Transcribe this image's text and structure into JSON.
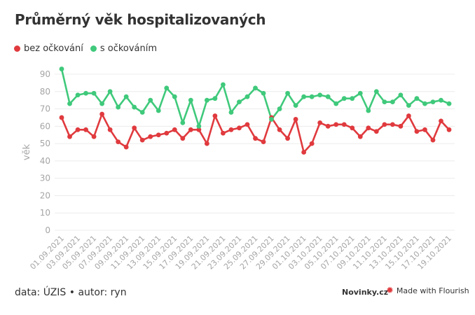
{
  "title": "Průměrný věk hospitalizovaných",
  "footer": {
    "source": "data: ÚZIS • autor: ryn",
    "brand": "Novinky.cz",
    "flourish": "Made with Flourish"
  },
  "colors": {
    "unvaccinated": "#e03a3e",
    "vaccinated": "#3fc97b",
    "grid": "#ececec",
    "axis_text": "#a5a5a5"
  },
  "chart_data": {
    "type": "line",
    "title": "Průměrný věk hospitalizovaných",
    "ylabel": "věk",
    "xlabel": "",
    "ylim": [
      0,
      90
    ],
    "yticks": [
      0,
      10,
      20,
      30,
      40,
      50,
      60,
      70,
      80,
      90
    ],
    "grid": true,
    "legend_position": "top-left",
    "x": [
      "01.09.2021",
      "02.09.2021",
      "03.09.2021",
      "04.09.2021",
      "05.09.2021",
      "06.09.2021",
      "07.09.2021",
      "08.09.2021",
      "09.09.2021",
      "10.09.2021",
      "11.09.2021",
      "12.09.2021",
      "13.09.2021",
      "14.09.2021",
      "15.09.2021",
      "16.09.2021",
      "17.09.2021",
      "18.09.2021",
      "19.09.2021",
      "20.09.2021",
      "21.09.2021",
      "22.09.2021",
      "23.09.2021",
      "24.09.2021",
      "25.09.2021",
      "26.09.2021",
      "27.09.2021",
      "28.09.2021",
      "29.09.2021",
      "30.09.2021",
      "01.10.2021",
      "02.10.2021",
      "03.10.2021",
      "04.10.2021",
      "05.10.2021",
      "06.10.2021",
      "07.10.2021",
      "08.10.2021",
      "09.10.2021",
      "10.10.2021",
      "11.10.2021",
      "12.10.2021",
      "13.10.2021",
      "14.10.2021",
      "15.10.2021",
      "16.10.2021",
      "17.10.2021",
      "18.10.2021",
      "19.10.2021"
    ],
    "xtick_labels": [
      "01.09.2021",
      "03.09.2021",
      "05.09.2021",
      "07.09.2021",
      "09.09.2021",
      "11.09.2021",
      "13.09.2021",
      "15.09.2021",
      "17.09.2021",
      "19.09.2021",
      "21.09.2021",
      "23.09.2021",
      "25.09.2021",
      "27.09.2021",
      "29.09.2021",
      "01.10.2021",
      "03.10.2021",
      "05.10.2021",
      "07.10.2021",
      "09.10.2021",
      "11.10.2021",
      "13.10.2021",
      "15.10.2021",
      "17.10.2021",
      "19.10.2021"
    ],
    "series": [
      {
        "name": "bez očkování",
        "color": "#e03a3e",
        "values": [
          65,
          54,
          58,
          58,
          54,
          67,
          58,
          51,
          48,
          59,
          52,
          54,
          55,
          56,
          58,
          53,
          58,
          58,
          50,
          66,
          56,
          58,
          59,
          61,
          53,
          51,
          65,
          58,
          53,
          64,
          45,
          50,
          62,
          60,
          61,
          61,
          59,
          54,
          59,
          57,
          61,
          61,
          60,
          66,
          57,
          58,
          52,
          63,
          58
        ]
      },
      {
        "name": "s očkováním",
        "color": "#3fc97b",
        "values": [
          93,
          73,
          78,
          79,
          79,
          73,
          80,
          71,
          77,
          71,
          68,
          75,
          69,
          82,
          77,
          62,
          75,
          60,
          75,
          76,
          84,
          68,
          74,
          77,
          82,
          79,
          64,
          70,
          79,
          72,
          77,
          77,
          78,
          77,
          73,
          76,
          76,
          79,
          69,
          80,
          74,
          74,
          78,
          72,
          76,
          73,
          74,
          75,
          73
        ]
      }
    ]
  }
}
